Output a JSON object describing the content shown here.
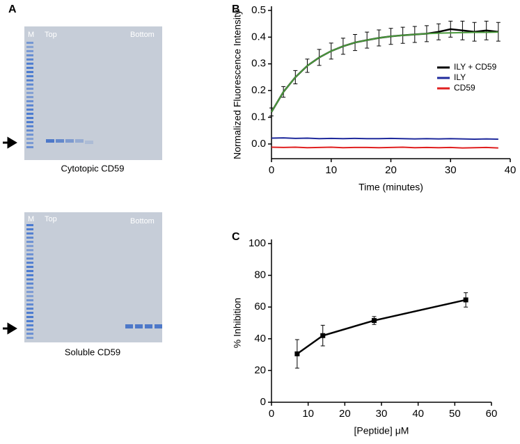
{
  "panels": {
    "a": "A",
    "b": "B",
    "c": "C"
  },
  "gels": [
    {
      "marker": "M",
      "top": "Top",
      "bottom": "Bottom",
      "caption": "Cytotopic CD59"
    },
    {
      "marker": "M",
      "top": "Top",
      "bottom": "Bottom",
      "caption": "Soluble CD59"
    }
  ],
  "chart_data": [
    {
      "type": "line",
      "ylabel": "Normalized Fluorescence Intensity",
      "xlabel": "Time (minutes)",
      "x": [
        0,
        2,
        4,
        6,
        8,
        10,
        12,
        14,
        16,
        18,
        20,
        22,
        24,
        26,
        28,
        30,
        32,
        34,
        36,
        38
      ],
      "series": [
        {
          "name": "ILY + CD59",
          "color": "#000000",
          "values": [
            0.12,
            0.195,
            0.25,
            0.293,
            0.324,
            0.348,
            0.366,
            0.38,
            0.389,
            0.397,
            0.403,
            0.407,
            0.41,
            0.413,
            0.42,
            0.43,
            0.425,
            0.42,
            0.425,
            0.42
          ],
          "errors": [
            0.015,
            0.02,
            0.025,
            0.025,
            0.03,
            0.03,
            0.03,
            0.03,
            0.03,
            0.03,
            0.03,
            0.03,
            0.03,
            0.03,
            0.03,
            0.03,
            0.035,
            0.035,
            0.035,
            0.035
          ]
        },
        {
          "color": "#4a9a3c",
          "values": [
            0.12,
            0.195,
            0.25,
            0.293,
            0.324,
            0.348,
            0.366,
            0.38,
            0.389,
            0.397,
            0.403,
            0.407,
            0.41,
            0.413,
            0.415,
            0.416,
            0.417,
            0.418,
            0.418,
            0.419
          ]
        },
        {
          "name": "ILY",
          "color": "#1f2a9c",
          "values": [
            0.022,
            0.023,
            0.021,
            0.022,
            0.02,
            0.021,
            0.02,
            0.021,
            0.02,
            0.02,
            0.021,
            0.02,
            0.019,
            0.02,
            0.019,
            0.02,
            0.019,
            0.018,
            0.019,
            0.018
          ]
        },
        {
          "name": "CD59",
          "color": "#e02020",
          "values": [
            -0.012,
            -0.013,
            -0.012,
            -0.014,
            -0.013,
            -0.012,
            -0.014,
            -0.013,
            -0.013,
            -0.014,
            -0.013,
            -0.012,
            -0.014,
            -0.013,
            -0.014,
            -0.013,
            -0.015,
            -0.014,
            -0.013,
            -0.015
          ]
        }
      ],
      "xlim": [
        0,
        40
      ],
      "xticks": [
        0,
        10,
        20,
        30,
        40
      ],
      "ylim": [
        -0.055,
        0.5
      ],
      "yticks": [
        {
          "value": 0,
          "label": "0.0"
        },
        0.1,
        0.2,
        0.3,
        0.4,
        0.5
      ],
      "legend": "center right"
    },
    {
      "type": "line",
      "ylabel": "% Inhibition",
      "xlabel": "[Peptide] μM",
      "x": [
        7,
        14,
        28,
        53
      ],
      "series": [
        {
          "color": "#000000",
          "values": [
            30.5,
            42,
            51.5,
            64.5
          ],
          "errors": [
            9,
            6.5,
            2.5,
            4.5
          ]
        }
      ],
      "xlim": [
        0,
        60
      ],
      "xticks": [
        0,
        10,
        20,
        30,
        40,
        50,
        60
      ],
      "ylim": [
        0,
        100
      ],
      "yticks": [
        0,
        20,
        40,
        60,
        80,
        100
      ],
      "markers": true
    }
  ]
}
